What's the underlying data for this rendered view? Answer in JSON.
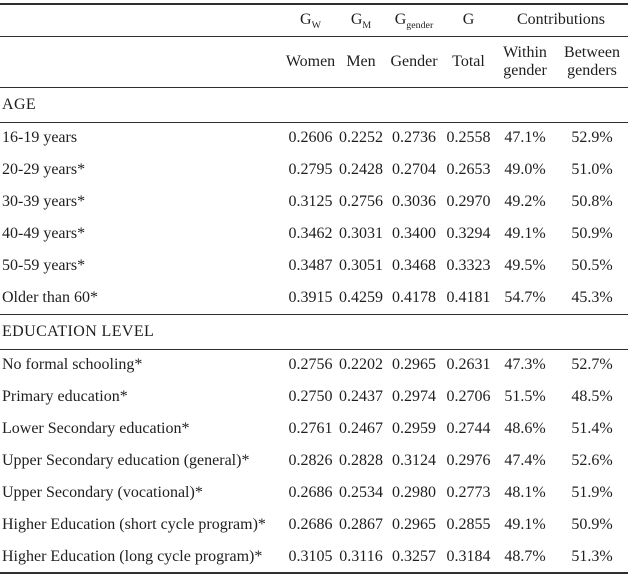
{
  "table": {
    "header": {
      "symbols": [
        {
          "base": "G",
          "sub": "W"
        },
        {
          "base": "G",
          "sub": "M"
        },
        {
          "base": "G",
          "sub": "gender"
        },
        {
          "base": "G",
          "sub": ""
        }
      ],
      "contributions_label": "Contributions",
      "sub_headers": [
        "Women",
        "Men",
        "Gender",
        "Total",
        "Within gender",
        "Between genders"
      ]
    },
    "sections": [
      {
        "title": "AGE",
        "rows": [
          {
            "label": "16-19 years",
            "values": [
              "0.2606",
              "0.2252",
              "0.2736",
              "0.2558",
              "47.1%",
              "52.9%"
            ]
          },
          {
            "label": "20-29 years*",
            "values": [
              "0.2795",
              "0.2428",
              "0.2704",
              "0.2653",
              "49.0%",
              "51.0%"
            ]
          },
          {
            "label": "30-39 years*",
            "values": [
              "0.3125",
              "0.2756",
              "0.3036",
              "0.2970",
              "49.2%",
              "50.8%"
            ]
          },
          {
            "label": "40-49 years*",
            "values": [
              "0.3462",
              "0.3031",
              "0.3400",
              "0.3294",
              "49.1%",
              "50.9%"
            ]
          },
          {
            "label": "50-59 years*",
            "values": [
              "0.3487",
              "0.3051",
              "0.3468",
              "0.3323",
              "49.5%",
              "50.5%"
            ]
          },
          {
            "label": "Older than 60*",
            "values": [
              "0.3915",
              "0.4259",
              "0.4178",
              "0.4181",
              "54.7%",
              "45.3%"
            ]
          }
        ]
      },
      {
        "title": "EDUCATION LEVEL",
        "rows": [
          {
            "label": "No formal schooling*",
            "values": [
              "0.2756",
              "0.2202",
              "0.2965",
              "0.2631",
              "47.3%",
              "52.7%"
            ]
          },
          {
            "label": "Primary education*",
            "values": [
              "0.2750",
              "0.2437",
              "0.2974",
              "0.2706",
              "51.5%",
              "48.5%"
            ]
          },
          {
            "label": "Lower Secondary education*",
            "values": [
              "0.2761",
              "0.2467",
              "0.2959",
              "0.2744",
              "48.6%",
              "51.4%"
            ]
          },
          {
            "label": "Upper Secondary education (general)*",
            "values": [
              "0.2826",
              "0.2828",
              "0.3124",
              "0.2976",
              "47.4%",
              "52.6%"
            ]
          },
          {
            "label": "Upper Secondary (vocational)*",
            "values": [
              "0.2686",
              "0.2534",
              "0.2980",
              "0.2773",
              "48.1%",
              "51.9%"
            ]
          },
          {
            "label": "Higher Education (short cycle program)*",
            "values": [
              "0.2686",
              "0.2867",
              "0.2965",
              "0.2855",
              "49.1%",
              "50.9%"
            ]
          },
          {
            "label": "Higher Education (long cycle program)*",
            "values": [
              "0.3105",
              "0.3116",
              "0.3257",
              "0.3184",
              "48.7%",
              "51.3%"
            ]
          }
        ]
      }
    ],
    "colors": {
      "text": "#1e1e1e",
      "rule": "#2f2f2f",
      "background": "#ffffff"
    }
  }
}
